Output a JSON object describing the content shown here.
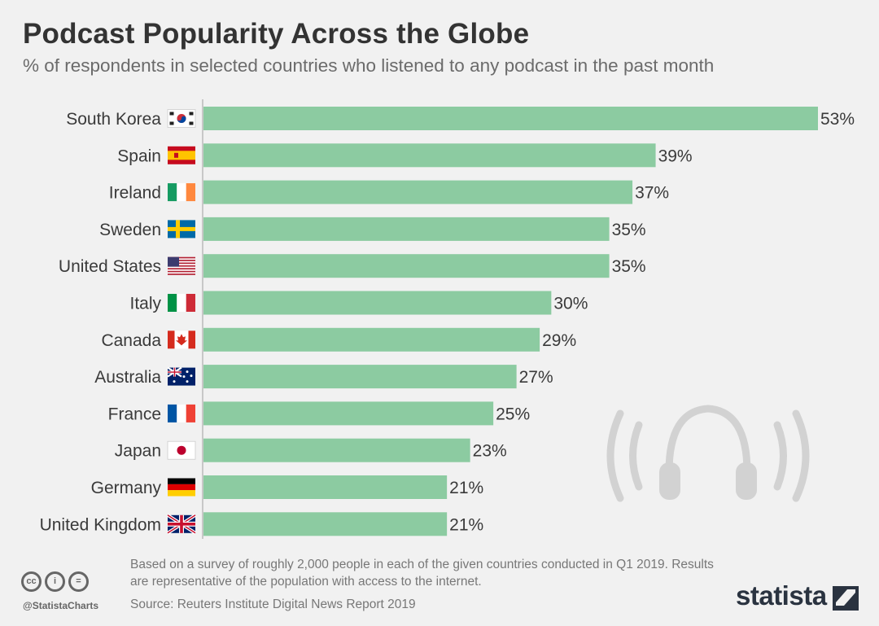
{
  "title": "Podcast Popularity Across the Globe",
  "subtitle": "% of respondents in selected countries who listened to any podcast in the past month",
  "chart_data": {
    "type": "bar",
    "orientation": "horizontal",
    "title": "Podcast Popularity Across the Globe",
    "subtitle": "% of respondents in selected countries who listened to any podcast in the past month",
    "categories": [
      "South Korea",
      "Spain",
      "Ireland",
      "Sweden",
      "United States",
      "Italy",
      "Canada",
      "Australia",
      "France",
      "Japan",
      "Germany",
      "United Kingdom"
    ],
    "values": [
      53,
      39,
      37,
      35,
      35,
      30,
      29,
      27,
      25,
      23,
      21,
      21
    ],
    "value_labels": [
      "53%",
      "39%",
      "37%",
      "35%",
      "35%",
      "30%",
      "29%",
      "27%",
      "25%",
      "23%",
      "21%",
      "21%"
    ],
    "unit": "%",
    "xlim": [
      0,
      53
    ],
    "bar_color": "#8ccba1",
    "axis_color": "#c8c8c8"
  },
  "flags": [
    "south-korea-flag-icon",
    "spain-flag-icon",
    "ireland-flag-icon",
    "sweden-flag-icon",
    "united-states-flag-icon",
    "italy-flag-icon",
    "canada-flag-icon",
    "australia-flag-icon",
    "france-flag-icon",
    "japan-flag-icon",
    "germany-flag-icon",
    "united-kingdom-flag-icon"
  ],
  "footer": {
    "note": "Based on a survey of roughly 2,000 people in each of the given countries conducted in Q1 2019. Results are representative of the population with access to the internet.",
    "source": "Source: Reuters Institute Digital News Report 2019",
    "handle": "@StatistaCharts",
    "cc": [
      "cc",
      "i",
      "="
    ],
    "brand": "statista"
  },
  "decor": {
    "headphones": "headphones-icon"
  }
}
